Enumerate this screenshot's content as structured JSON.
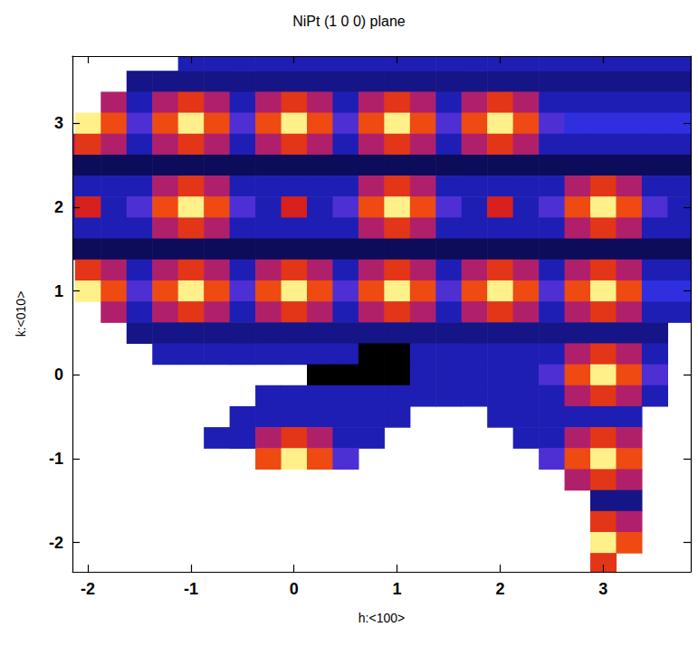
{
  "chart_data": {
    "type": "heatmap",
    "title": "NiPt (1 0 0) plane",
    "x_label": "h:<100>",
    "y_label": "k:<010>",
    "xlim": [
      -2.15,
      3.85
    ],
    "ylim": [
      -2.35,
      3.8
    ],
    "xticks": [
      -2,
      -1,
      0,
      1,
      2,
      3
    ],
    "yticks": [
      -2,
      -1,
      0,
      1,
      2,
      3
    ],
    "zlim": [
      0,
      10
    ],
    "x": [
      -2.25,
      -2,
      -1.75,
      -1.5,
      -1.25,
      -1,
      -0.75,
      -0.5,
      -0.25,
      0,
      0.25,
      0.5,
      0.75,
      1,
      1.25,
      1.5,
      1.75,
      2,
      2.25,
      2.5,
      2.75,
      3,
      3.25,
      3.5,
      3.75
    ],
    "y": [
      3.75,
      3.5,
      3.25,
      3,
      2.75,
      2.5,
      2.25,
      2,
      1.75,
      1.5,
      1.25,
      1,
      0.75,
      0.5,
      0.25,
      0,
      -0.25,
      -0.5,
      -0.75,
      -1,
      -1.25,
      -1.5,
      -1.75,
      -2,
      -2.25
    ],
    "values": [
      [
        null,
        null,
        null,
        null,
        null,
        2,
        2,
        2,
        2,
        2,
        2,
        2,
        2,
        2,
        2,
        2,
        2,
        2,
        2,
        2,
        2,
        2,
        2,
        2,
        2
      ],
      [
        null,
        null,
        null,
        1.5,
        1.5,
        1.5,
        1.5,
        1.5,
        1.5,
        1.5,
        1.5,
        1.5,
        1.5,
        1.5,
        1.5,
        1.5,
        1.5,
        1.5,
        1.5,
        1.5,
        1.5,
        1.5,
        1.5,
        1.5,
        1.5
      ],
      [
        null,
        null,
        5,
        2,
        5,
        6.5,
        5,
        2,
        5,
        6.5,
        5,
        2,
        5,
        6.5,
        5,
        2,
        5,
        6.5,
        5,
        2,
        2,
        2,
        2,
        2,
        2
      ],
      [
        null,
        10,
        7,
        3.5,
        7,
        10,
        7,
        3.5,
        7,
        10,
        7,
        3.5,
        7,
        10,
        7,
        3.5,
        7,
        10,
        7,
        3.5,
        3,
        3,
        3,
        3,
        3
      ],
      [
        5,
        6.5,
        5,
        2,
        5,
        6.5,
        5,
        2,
        5,
        6.5,
        5,
        2,
        5,
        6.5,
        5,
        2,
        5,
        6.5,
        5,
        2,
        2,
        2,
        2,
        2,
        2
      ],
      [
        1,
        1,
        1,
        1,
        1,
        1,
        1,
        1,
        1,
        1,
        1,
        1,
        1,
        1,
        1,
        1,
        1,
        1,
        1,
        1,
        1,
        1,
        1,
        1,
        1
      ],
      [
        2,
        2,
        2,
        2,
        5,
        6.5,
        5,
        2,
        2,
        2,
        2,
        2,
        5,
        6.5,
        5,
        2,
        2,
        2,
        2,
        2,
        5,
        6.5,
        5,
        2,
        2
      ],
      [
        2,
        6,
        2,
        3.5,
        7,
        10,
        7,
        3.5,
        2,
        6,
        2,
        3.5,
        7,
        10,
        7,
        3.5,
        2,
        6,
        2,
        3.5,
        7,
        10,
        7,
        3.5,
        2
      ],
      [
        2,
        2,
        2,
        2,
        5,
        6.5,
        5,
        2,
        2,
        2,
        2,
        2,
        5,
        6.5,
        5,
        2,
        2,
        2,
        2,
        2,
        5,
        6.5,
        5,
        2,
        2
      ],
      [
        1,
        1,
        1,
        1,
        1,
        1,
        1,
        1,
        1,
        1,
        1,
        1,
        1,
        1,
        1,
        1,
        1,
        1,
        1,
        1,
        1,
        1,
        1,
        1,
        1
      ],
      [
        null,
        6.5,
        5,
        2,
        5,
        6.5,
        5,
        2,
        5,
        6.5,
        5,
        2,
        5,
        6.5,
        5,
        2,
        5,
        6.5,
        5,
        2,
        5,
        6.5,
        5,
        2,
        2
      ],
      [
        null,
        10,
        7,
        3.5,
        7,
        10,
        7,
        3.5,
        7,
        10,
        7,
        3.5,
        7,
        10,
        7,
        3.5,
        7,
        10,
        7,
        3.5,
        7,
        10,
        7,
        3,
        3
      ],
      [
        null,
        null,
        5,
        2,
        5,
        6.5,
        5,
        2,
        5,
        6.5,
        5,
        2,
        5,
        6.5,
        5,
        2,
        5,
        6.5,
        5,
        2,
        5,
        6.5,
        5,
        2,
        2
      ],
      [
        null,
        null,
        null,
        1.5,
        1.5,
        1.5,
        1.5,
        1.5,
        1.5,
        1.5,
        1.5,
        1.5,
        1.5,
        1.5,
        1.5,
        1.5,
        1.5,
        1.5,
        1.5,
        1.5,
        1.5,
        1.5,
        1.5,
        1.5,
        null
      ],
      [
        null,
        null,
        null,
        null,
        2,
        2,
        2,
        2,
        2,
        2,
        2,
        2,
        0,
        0,
        2,
        2,
        2,
        2,
        2,
        2,
        5,
        6.5,
        5,
        2,
        null
      ],
      [
        null,
        null,
        null,
        null,
        null,
        null,
        null,
        null,
        null,
        null,
        0,
        0,
        0,
        0,
        2,
        2,
        2,
        2,
        2,
        3.5,
        7,
        10,
        7,
        3.5,
        null
      ],
      [
        null,
        null,
        null,
        null,
        null,
        null,
        null,
        null,
        2,
        2,
        2,
        2,
        2,
        2,
        2,
        2,
        2,
        2,
        2,
        2,
        5,
        6.5,
        5,
        2,
        null
      ],
      [
        null,
        null,
        null,
        null,
        null,
        null,
        null,
        2,
        2,
        2,
        2,
        2,
        2,
        2,
        null,
        null,
        null,
        2,
        2,
        2,
        2,
        2,
        2,
        null,
        null
      ],
      [
        null,
        null,
        null,
        null,
        null,
        null,
        2,
        2,
        5,
        6.5,
        5,
        2,
        2,
        null,
        null,
        null,
        null,
        null,
        2,
        2,
        5,
        6.5,
        5,
        null,
        null
      ],
      [
        null,
        null,
        null,
        null,
        null,
        null,
        null,
        null,
        7,
        10,
        7,
        3.5,
        null,
        null,
        null,
        null,
        null,
        null,
        null,
        3.5,
        7,
        10,
        7,
        null,
        null
      ],
      [
        null,
        null,
        null,
        null,
        null,
        null,
        null,
        null,
        null,
        null,
        null,
        null,
        null,
        null,
        null,
        null,
        null,
        null,
        null,
        null,
        5,
        6.5,
        5,
        null,
        null
      ],
      [
        null,
        null,
        null,
        null,
        null,
        null,
        null,
        null,
        null,
        null,
        null,
        null,
        null,
        null,
        null,
        null,
        null,
        null,
        null,
        null,
        null,
        1.5,
        1.5,
        null,
        null
      ],
      [
        null,
        null,
        null,
        null,
        null,
        null,
        null,
        null,
        null,
        null,
        null,
        null,
        null,
        null,
        null,
        null,
        null,
        null,
        null,
        null,
        null,
        6.5,
        5,
        null,
        null
      ],
      [
        null,
        null,
        null,
        null,
        null,
        null,
        null,
        null,
        null,
        null,
        null,
        null,
        null,
        null,
        null,
        null,
        null,
        null,
        null,
        null,
        null,
        10,
        7,
        null,
        null
      ],
      [
        null,
        null,
        null,
        null,
        null,
        null,
        null,
        null,
        null,
        null,
        null,
        null,
        null,
        null,
        null,
        null,
        null,
        null,
        null,
        null,
        null,
        6.5,
        null,
        null,
        null
      ]
    ]
  }
}
